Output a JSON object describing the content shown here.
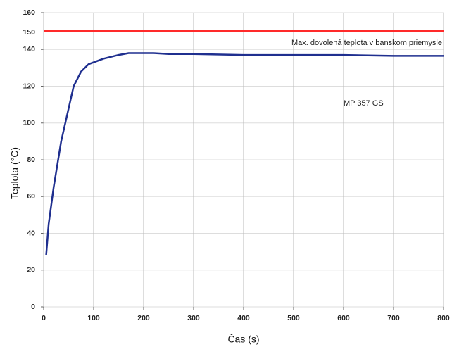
{
  "chart_data": {
    "type": "line",
    "x_label": "Čas (s)",
    "y_label": "Teplota (°C)",
    "series": [
      {
        "name": "MP 357 GS",
        "color": "#1f2f8f",
        "x": [
          5,
          10,
          20,
          35,
          60,
          75,
          90,
          120,
          150,
          170,
          200,
          220,
          250,
          300,
          400,
          500,
          600,
          700,
          800
        ],
        "values": [
          28,
          45,
          65,
          90,
          120,
          128,
          132,
          135,
          137,
          138,
          138,
          138,
          137.5,
          137.5,
          137,
          137,
          137,
          136.5,
          136.5
        ]
      }
    ],
    "reference_line": {
      "value": 150,
      "label": "Max. dovolená teplota v banskom priemysle",
      "color": "#ff2a2a",
      "label_color": "#cc1f3a"
    },
    "xlim": [
      0,
      800
    ],
    "xticks": [
      0,
      100,
      200,
      300,
      400,
      500,
      600,
      700,
      800
    ],
    "ylim": [
      0,
      160
    ],
    "yticks": [
      0,
      20,
      40,
      60,
      80,
      100,
      120,
      140,
      160
    ],
    "grid": true
  }
}
